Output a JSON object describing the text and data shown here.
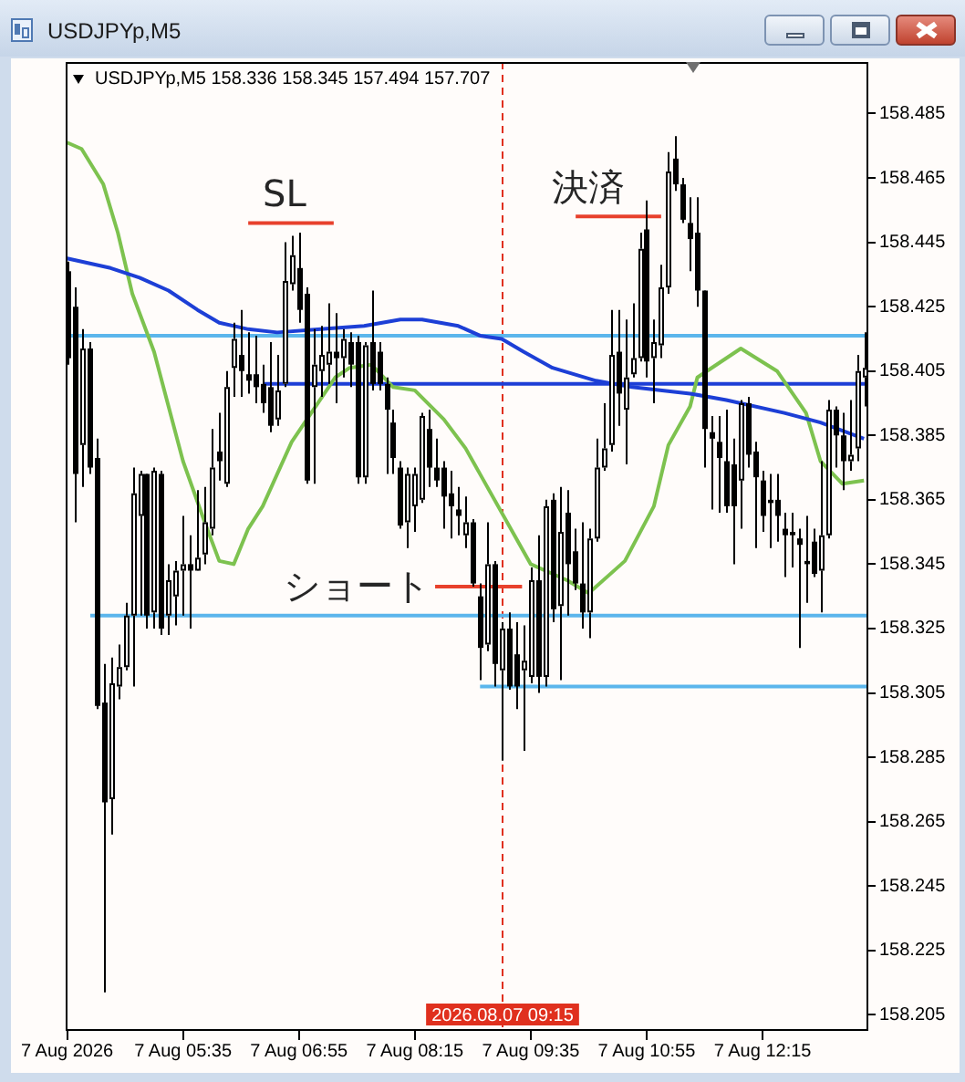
{
  "chart_data": {
    "type": "candlestick",
    "title": "USDJPYp,M5",
    "subtitle": "USDJPYp,M5 158.336 158.345 157.494 157.707",
    "x": [
      "2026-08-07T04:15",
      "2026-08-07T04:20",
      "2026-08-07T04:25",
      "2026-08-07T04:30",
      "2026-08-07T04:35",
      "2026-08-07T04:40",
      "2026-08-07T04:45",
      "2026-08-07T04:50",
      "2026-08-07T04:55",
      "2026-08-07T05:00",
      "2026-08-07T05:05",
      "2026-08-07T05:10",
      "2026-08-07T05:15",
      "2026-08-07T05:20",
      "2026-08-07T05:25",
      "2026-08-07T05:30",
      "2026-08-07T05:35",
      "2026-08-07T05:40",
      "2026-08-07T05:45",
      "2026-08-07T05:50",
      "2026-08-07T05:55",
      "2026-08-07T06:00",
      "2026-08-07T06:05",
      "2026-08-07T06:10",
      "2026-08-07T06:15",
      "2026-08-07T06:20",
      "2026-08-07T06:25",
      "2026-08-07T06:30",
      "2026-08-07T06:35",
      "2026-08-07T06:40",
      "2026-08-07T06:45",
      "2026-08-07T06:50",
      "2026-08-07T06:55",
      "2026-08-07T07:00",
      "2026-08-07T07:05",
      "2026-08-07T07:10",
      "2026-08-07T07:15",
      "2026-08-07T07:20",
      "2026-08-07T07:25",
      "2026-08-07T07:30",
      "2026-08-07T07:35",
      "2026-08-07T07:40",
      "2026-08-07T07:45",
      "2026-08-07T07:50",
      "2026-08-07T07:55",
      "2026-08-07T08:00",
      "2026-08-07T08:05",
      "2026-08-07T08:10",
      "2026-08-07T08:15",
      "2026-08-07T08:20",
      "2026-08-07T08:25",
      "2026-08-07T08:30",
      "2026-08-07T08:35",
      "2026-08-07T08:40",
      "2026-08-07T08:45",
      "2026-08-07T08:50",
      "2026-08-07T08:55",
      "2026-08-07T09:00",
      "2026-08-07T09:05",
      "2026-08-07T09:10",
      "2026-08-07T09:15",
      "2026-08-07T09:20",
      "2026-08-07T09:25",
      "2026-08-07T09:30",
      "2026-08-07T09:35",
      "2026-08-07T09:40",
      "2026-08-07T09:45",
      "2026-08-07T09:50",
      "2026-08-07T09:55",
      "2026-08-07T10:00",
      "2026-08-07T10:05",
      "2026-08-07T10:10",
      "2026-08-07T10:15",
      "2026-08-07T10:20",
      "2026-08-07T10:25",
      "2026-08-07T10:30",
      "2026-08-07T10:35",
      "2026-08-07T10:40",
      "2026-08-07T10:45",
      "2026-08-07T10:50",
      "2026-08-07T10:55",
      "2026-08-07T11:00",
      "2026-08-07T11:05",
      "2026-08-07T11:10",
      "2026-08-07T11:15",
      "2026-08-07T11:20",
      "2026-08-07T11:25",
      "2026-08-07T11:30",
      "2026-08-07T11:35",
      "2026-08-07T11:40",
      "2026-08-07T11:45",
      "2026-08-07T11:50",
      "2026-08-07T11:55",
      "2026-08-07T12:00",
      "2026-08-07T12:05",
      "2026-08-07T12:10",
      "2026-08-07T12:15",
      "2026-08-07T12:20",
      "2026-08-07T12:25",
      "2026-08-07T12:30",
      "2026-08-07T12:35",
      "2026-08-07T12:40",
      "2026-08-07T12:45",
      "2026-08-07T12:50",
      "2026-08-07T12:55",
      "2026-08-07T13:00",
      "2026-08-07T13:05",
      "2026-08-07T13:10",
      "2026-08-07T13:15",
      "2026-08-07T13:20",
      "2026-08-07T13:25"
    ],
    "ohlc": [
      [
        158.436,
        158.439,
        158.407,
        158.409
      ],
      [
        158.425,
        158.431,
        158.358,
        158.373
      ],
      [
        158.382,
        158.418,
        158.369,
        158.412
      ],
      [
        158.412,
        158.414,
        158.373,
        158.375
      ],
      [
        158.378,
        158.384,
        158.3,
        158.301
      ],
      [
        158.302,
        158.314,
        158.212,
        158.271
      ],
      [
        158.272,
        158.316,
        158.261,
        158.308
      ],
      [
        158.307,
        158.32,
        158.303,
        158.313
      ],
      [
        158.313,
        158.333,
        158.312,
        158.329
      ],
      [
        158.329,
        158.375,
        158.307,
        158.367
      ],
      [
        158.36,
        158.374,
        158.329,
        158.373
      ],
      [
        158.373,
        158.373,
        158.325,
        158.329
      ],
      [
        158.33,
        158.375,
        158.325,
        158.374
      ],
      [
        158.373,
        158.374,
        158.323,
        158.325
      ],
      [
        158.329,
        158.345,
        158.323,
        158.34
      ],
      [
        158.335,
        158.346,
        158.326,
        158.343
      ],
      [
        158.343,
        158.36,
        158.329,
        158.345
      ],
      [
        158.345,
        158.354,
        158.325,
        158.343
      ],
      [
        158.343,
        158.368,
        158.343,
        158.347
      ],
      [
        158.348,
        158.369,
        158.345,
        158.358
      ],
      [
        158.356,
        158.387,
        158.354,
        158.375
      ],
      [
        158.38,
        158.392,
        158.371,
        158.377
      ],
      [
        158.37,
        158.405,
        158.369,
        158.4
      ],
      [
        158.406,
        158.42,
        158.397,
        158.415
      ],
      [
        158.41,
        158.424,
        158.397,
        158.405
      ],
      [
        158.404,
        158.417,
        158.398,
        158.402
      ],
      [
        158.404,
        158.416,
        158.395,
        158.4
      ],
      [
        158.401,
        158.407,
        158.392,
        158.395
      ],
      [
        158.4,
        158.414,
        158.386,
        158.388
      ],
      [
        158.39,
        158.41,
        158.388,
        158.399
      ],
      [
        158.401,
        158.445,
        158.4,
        158.433
      ],
      [
        158.432,
        158.447,
        158.43,
        158.441
      ],
      [
        158.437,
        158.448,
        158.42,
        158.424
      ],
      [
        158.429,
        158.431,
        158.37,
        158.371
      ],
      [
        158.4,
        158.418,
        158.37,
        158.407
      ],
      [
        158.405,
        158.419,
        158.397,
        158.41
      ],
      [
        158.407,
        158.426,
        158.401,
        158.411
      ],
      [
        158.411,
        158.423,
        158.395,
        158.409
      ],
      [
        158.409,
        158.418,
        158.403,
        158.415
      ],
      [
        158.414,
        158.417,
        158.4,
        158.407
      ],
      [
        158.414,
        158.416,
        158.37,
        158.372
      ],
      [
        158.372,
        158.414,
        158.37,
        158.413
      ],
      [
        158.414,
        158.43,
        158.399,
        158.401
      ],
      [
        158.411,
        158.414,
        158.399,
        158.401
      ],
      [
        158.401,
        158.403,
        158.373,
        158.393
      ],
      [
        158.389,
        158.393,
        158.373,
        158.378
      ],
      [
        158.375,
        158.377,
        158.356,
        158.357
      ],
      [
        158.358,
        158.375,
        158.35,
        158.373
      ],
      [
        158.363,
        158.375,
        158.355,
        158.373
      ],
      [
        158.365,
        158.392,
        158.364,
        158.391
      ],
      [
        158.387,
        158.393,
        158.369,
        158.375
      ],
      [
        158.375,
        158.384,
        158.369,
        158.371
      ],
      [
        158.375,
        158.377,
        158.356,
        158.366
      ],
      [
        158.367,
        158.374,
        158.353,
        158.363
      ],
      [
        158.362,
        158.369,
        158.354,
        158.36
      ],
      [
        158.354,
        158.366,
        158.35,
        158.358
      ],
      [
        158.358,
        158.359,
        158.338,
        158.339
      ],
      [
        158.335,
        158.339,
        158.309,
        158.319
      ],
      [
        158.32,
        158.358,
        158.318,
        158.345
      ],
      [
        158.345,
        158.346,
        158.307,
        158.314
      ],
      [
        158.312,
        158.327,
        158.284,
        158.325
      ],
      [
        158.325,
        158.33,
        158.306,
        158.307
      ],
      [
        158.317,
        158.327,
        158.3,
        158.307
      ],
      [
        158.312,
        158.326,
        158.287,
        158.315
      ],
      [
        158.31,
        158.344,
        158.308,
        158.34
      ],
      [
        158.34,
        158.354,
        158.305,
        158.31
      ],
      [
        158.31,
        158.365,
        158.307,
        158.363
      ],
      [
        158.365,
        158.367,
        158.327,
        158.331
      ],
      [
        158.332,
        158.369,
        158.309,
        158.355
      ],
      [
        158.361,
        158.368,
        158.329,
        158.345
      ],
      [
        158.349,
        158.356,
        158.337,
        158.339
      ],
      [
        158.339,
        158.358,
        158.325,
        158.33
      ],
      [
        158.33,
        158.356,
        158.322,
        158.353
      ],
      [
        158.353,
        158.384,
        158.352,
        158.375
      ],
      [
        158.375,
        158.395,
        158.374,
        158.381
      ],
      [
        158.382,
        158.424,
        158.38,
        158.41
      ],
      [
        158.411,
        158.424,
        158.388,
        158.398
      ],
      [
        158.393,
        158.421,
        158.376,
        158.403
      ],
      [
        158.404,
        158.426,
        158.403,
        158.409
      ],
      [
        158.409,
        158.448,
        158.408,
        158.443
      ],
      [
        158.449,
        158.458,
        158.403,
        158.408
      ],
      [
        158.409,
        158.421,
        158.395,
        158.414
      ],
      [
        158.413,
        158.438,
        158.409,
        158.431
      ],
      [
        158.431,
        158.473,
        158.429,
        158.467
      ],
      [
        158.471,
        158.478,
        158.461,
        158.463
      ],
      [
        158.463,
        158.465,
        158.451,
        158.452
      ],
      [
        158.451,
        158.459,
        158.436,
        158.446
      ],
      [
        158.448,
        158.459,
        158.425,
        158.43
      ],
      [
        158.43,
        158.43,
        158.375,
        158.387
      ],
      [
        158.386,
        158.391,
        158.362,
        158.384
      ],
      [
        158.383,
        158.391,
        158.361,
        158.378
      ],
      [
        158.377,
        158.393,
        158.361,
        158.363
      ],
      [
        158.376,
        158.384,
        158.345,
        158.363
      ],
      [
        158.371,
        158.396,
        158.356,
        158.395
      ],
      [
        158.395,
        158.397,
        158.375,
        158.379
      ],
      [
        158.38,
        158.383,
        158.35,
        158.372
      ],
      [
        158.371,
        158.374,
        158.355,
        158.36
      ],
      [
        158.365,
        158.373,
        158.35,
        158.364
      ],
      [
        158.365,
        158.373,
        158.352,
        158.36
      ],
      [
        158.356,
        158.361,
        158.341,
        158.354
      ],
      [
        158.355,
        158.361,
        158.344,
        158.354
      ],
      [
        158.353,
        158.356,
        158.319,
        158.351
      ],
      [
        158.346,
        158.36,
        158.333,
        158.345
      ],
      [
        158.352,
        158.356,
        158.341,
        158.342
      ],
      [
        158.343,
        158.377,
        158.33,
        158.354
      ],
      [
        158.354,
        158.396,
        158.353,
        158.393
      ],
      [
        158.393,
        158.394,
        158.375,
        158.385
      ],
      [
        158.385,
        158.392,
        158.368,
        158.377
      ],
      [
        158.377,
        158.396,
        158.374,
        158.379
      ],
      [
        158.381,
        158.41,
        158.377,
        158.405
      ],
      [
        158.403,
        158.417,
        158.394,
        158.406
      ]
    ],
    "series": [
      {
        "type": "line",
        "color": "#1d3fd6",
        "x": [
          "2026-08-07T04:15",
          "2026-08-07T04:45",
          "2026-08-07T05:05",
          "2026-08-07T05:25",
          "2026-08-07T05:45",
          "2026-08-07T06:00",
          "2026-08-07T06:20",
          "2026-08-07T06:40",
          "2026-08-07T07:10",
          "2026-08-07T07:40",
          "2026-08-07T08:05",
          "2026-08-07T08:20",
          "2026-08-07T08:45",
          "2026-08-07T09:00",
          "2026-08-07T09:15",
          "2026-08-07T09:30",
          "2026-08-07T09:50",
          "2026-08-07T10:20",
          "2026-08-07T10:45",
          "2026-08-07T11:25",
          "2026-08-07T11:50",
          "2026-08-07T12:30",
          "2026-08-07T12:55",
          "2026-08-07T13:25"
        ],
        "values": [
          158.44,
          158.437,
          158.434,
          158.43,
          158.424,
          158.42,
          158.418,
          158.417,
          158.418,
          158.419,
          158.421,
          158.421,
          158.419,
          158.416,
          158.415,
          158.411,
          158.406,
          158.402,
          158.4,
          158.398,
          158.396,
          158.392,
          158.389,
          158.384
        ]
      },
      {
        "type": "line",
        "color": "#7dc24f",
        "x": [
          "2026-08-07T04:15",
          "2026-08-07T04:25",
          "2026-08-07T04:40",
          "2026-08-07T04:50",
          "2026-08-07T05:00",
          "2026-08-07T05:15",
          "2026-08-07T05:25",
          "2026-08-07T05:35",
          "2026-08-07T05:50",
          "2026-08-07T06:00",
          "2026-08-07T06:10",
          "2026-08-07T06:20",
          "2026-08-07T06:30",
          "2026-08-07T06:50",
          "2026-08-07T07:20",
          "2026-08-07T07:30",
          "2026-08-07T07:45",
          "2026-08-07T08:00",
          "2026-08-07T08:15",
          "2026-08-07T08:35",
          "2026-08-07T08:50",
          "2026-08-07T09:00",
          "2026-08-07T09:25",
          "2026-08-07T09:35",
          "2026-08-07T10:00",
          "2026-08-07T10:15",
          "2026-08-07T10:40",
          "2026-08-07T11:00",
          "2026-08-07T11:10",
          "2026-08-07T11:25",
          "2026-08-07T11:30",
          "2026-08-07T12:00",
          "2026-08-07T12:25",
          "2026-08-07T12:45",
          "2026-08-07T12:55",
          "2026-08-07T13:10",
          "2026-08-07T13:25"
        ],
        "values": [
          158.476,
          158.474,
          158.463,
          158.448,
          158.429,
          158.411,
          158.394,
          158.377,
          158.358,
          158.346,
          158.345,
          158.356,
          158.363,
          158.383,
          158.403,
          158.406,
          158.407,
          158.4,
          158.399,
          158.39,
          158.381,
          158.373,
          158.353,
          158.345,
          158.34,
          158.336,
          158.346,
          158.363,
          158.382,
          158.394,
          158.403,
          158.412,
          158.405,
          158.392,
          158.377,
          158.37,
          158.371
        ]
      },
      {
        "type": "line",
        "color": "#5bb6ec",
        "x": [
          "2026-08-07T04:14",
          "2026-08-07T13:28"
        ],
        "values": [
          158.416,
          158.416
        ]
      },
      {
        "type": "line",
        "color": "#5bb6ec",
        "x": [
          "2026-08-07T04:31",
          "2026-08-07T13:28"
        ],
        "values": [
          158.329,
          158.329
        ]
      },
      {
        "type": "line",
        "color": "#5bb6ec",
        "x": [
          "2026-08-07T09:00",
          "2026-08-07T13:28"
        ],
        "values": [
          158.307,
          158.307
        ]
      },
      {
        "type": "line",
        "color": "#1d3fd6",
        "x": [
          "2026-08-07T06:30",
          "2026-08-07T13:28"
        ],
        "values": [
          158.401,
          158.401
        ]
      },
      {
        "type": "line",
        "color": "#e8412c",
        "x": [
          "2026-08-07T06:20",
          "2026-08-07T07:19"
        ],
        "values": [
          158.451,
          158.451
        ]
      },
      {
        "type": "line",
        "color": "#e8412c",
        "x": [
          "2026-08-07T08:29",
          "2026-08-07T09:29"
        ],
        "values": [
          158.338,
          158.338
        ]
      },
      {
        "type": "line",
        "color": "#e8412c",
        "x": [
          "2026-08-07T10:06",
          "2026-08-07T11:05"
        ],
        "values": [
          158.453,
          158.453
        ]
      }
    ],
    "xlim": [
      "2026-08-07T04:14",
      "2026-08-07T13:28"
    ],
    "xticks": [
      {
        "value": "2026-08-07T04:15",
        "label": "7 Aug 2026"
      },
      {
        "value": "2026-08-07T05:35",
        "label": "7 Aug 05:35"
      },
      {
        "value": "2026-08-07T06:55",
        "label": "7 Aug 06:55"
      },
      {
        "value": "2026-08-07T08:15",
        "label": "7 Aug 08:15"
      },
      {
        "value": "2026-08-07T09:35",
        "label": "7 Aug 09:35"
      },
      {
        "value": "2026-08-07T10:55",
        "label": "7 Aug 10:55"
      },
      {
        "value": "2026-08-07T12:15",
        "label": "7 Aug 12:15"
      }
    ],
    "ylim": [
      158.2,
      158.501
    ],
    "yticks": [
      158.205,
      158.225,
      158.245,
      158.265,
      158.285,
      158.305,
      158.325,
      158.345,
      158.365,
      158.385,
      158.405,
      158.425,
      158.445,
      158.465,
      158.485
    ],
    "ref_lines": [
      {
        "axis": "x",
        "value": "2026-08-07T09:15",
        "label": "2026.08.07 09:15",
        "color": "#e0301e",
        "line_style": "dashed"
      }
    ],
    "annotations": [
      {
        "text": "SL",
        "x": "2026-08-07T06:45",
        "y": 158.451
      },
      {
        "text": "ショート",
        "x": "2026-08-07T08:29",
        "y": 158.338
      },
      {
        "text": "決済",
        "x": "2026-08-07T10:15",
        "y": 158.453
      }
    ]
  }
}
